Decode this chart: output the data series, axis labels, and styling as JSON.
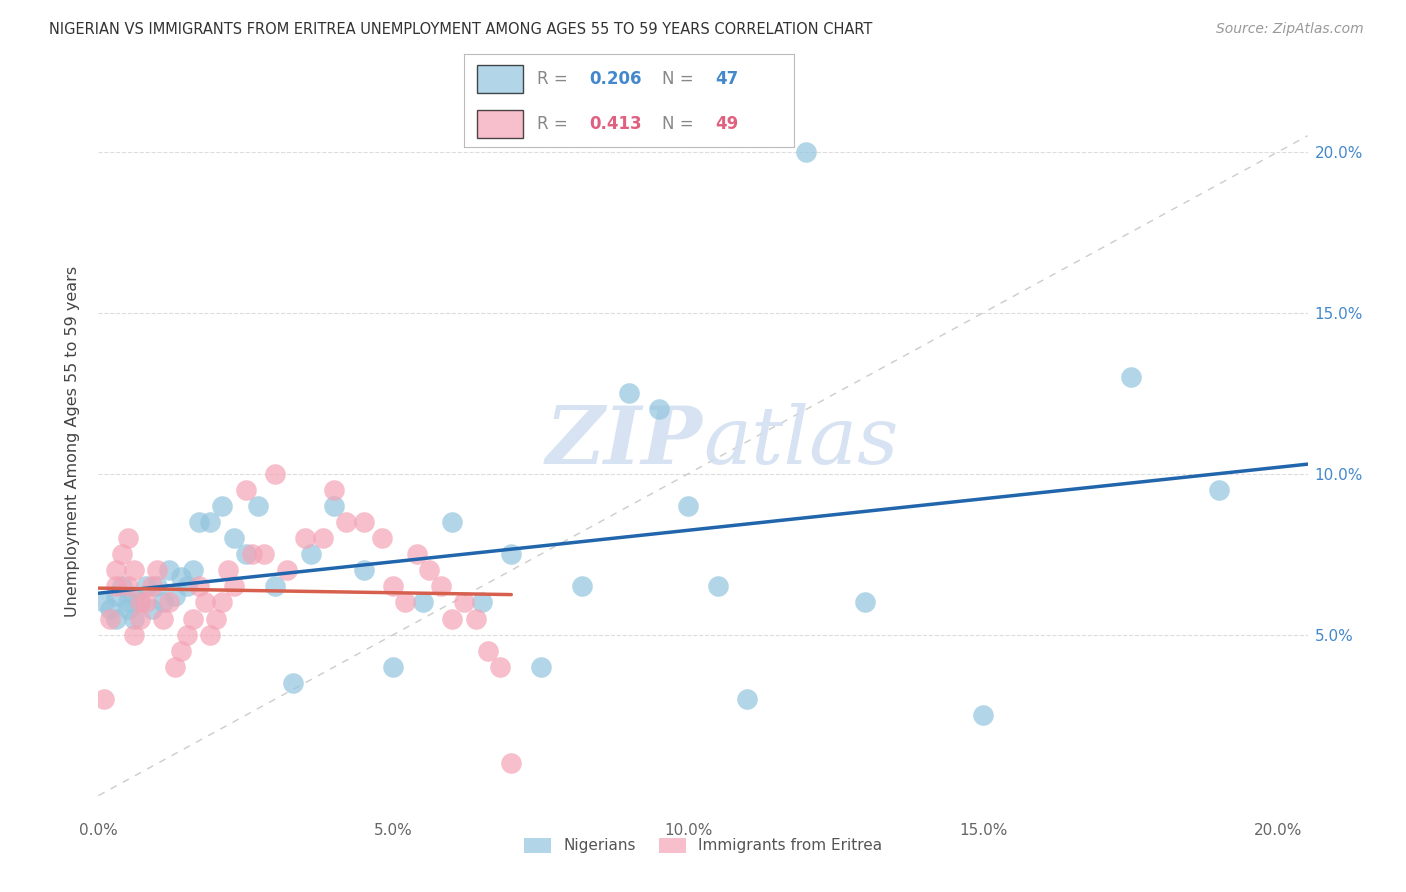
{
  "title": "NIGERIAN VS IMMIGRANTS FROM ERITREA UNEMPLOYMENT AMONG AGES 55 TO 59 YEARS CORRELATION CHART",
  "source": "Source: ZipAtlas.com",
  "ylabel": "Unemployment Among Ages 55 to 59 years",
  "xlabel_ticks": [
    "0.0%",
    "5.0%",
    "10.0%",
    "15.0%",
    "20.0%"
  ],
  "ylabel_ticks": [
    "5.0%",
    "10.0%",
    "15.0%",
    "20.0%"
  ],
  "xlim": [
    0.0,
    0.205
  ],
  "ylim": [
    -0.005,
    0.225
  ],
  "legend1_label": "Nigerians",
  "legend2_label": "Immigrants from Eritrea",
  "r1": "0.206",
  "n1": "47",
  "r2": "0.413",
  "n2": "49",
  "blue_color": "#92c5de",
  "pink_color": "#f4a3b5",
  "blue_line_color": "#2166ac",
  "pink_line_color": "#d6604d",
  "blue_x": [
    0.001,
    0.002,
    0.003,
    0.003,
    0.004,
    0.005,
    0.005,
    0.006,
    0.006,
    0.007,
    0.008,
    0.009,
    0.01,
    0.011,
    0.012,
    0.013,
    0.014,
    0.015,
    0.016,
    0.017,
    0.019,
    0.021,
    0.023,
    0.025,
    0.027,
    0.03,
    0.033,
    0.036,
    0.04,
    0.045,
    0.05,
    0.055,
    0.06,
    0.065,
    0.07,
    0.075,
    0.082,
    0.09,
    0.095,
    0.1,
    0.105,
    0.11,
    0.12,
    0.13,
    0.15,
    0.175,
    0.19
  ],
  "blue_y": [
    0.06,
    0.058,
    0.062,
    0.055,
    0.065,
    0.06,
    0.058,
    0.062,
    0.055,
    0.06,
    0.065,
    0.058,
    0.065,
    0.06,
    0.07,
    0.062,
    0.068,
    0.065,
    0.07,
    0.085,
    0.085,
    0.09,
    0.08,
    0.075,
    0.09,
    0.065,
    0.035,
    0.075,
    0.09,
    0.07,
    0.04,
    0.06,
    0.085,
    0.06,
    0.075,
    0.04,
    0.065,
    0.125,
    0.12,
    0.09,
    0.065,
    0.03,
    0.2,
    0.06,
    0.025,
    0.13,
    0.095
  ],
  "pink_x": [
    0.001,
    0.002,
    0.003,
    0.003,
    0.004,
    0.005,
    0.005,
    0.006,
    0.006,
    0.007,
    0.007,
    0.008,
    0.009,
    0.01,
    0.011,
    0.012,
    0.013,
    0.014,
    0.015,
    0.016,
    0.017,
    0.018,
    0.019,
    0.02,
    0.021,
    0.022,
    0.023,
    0.025,
    0.026,
    0.028,
    0.03,
    0.032,
    0.035,
    0.038,
    0.04,
    0.042,
    0.045,
    0.048,
    0.05,
    0.052,
    0.054,
    0.056,
    0.058,
    0.06,
    0.062,
    0.064,
    0.066,
    0.068,
    0.07
  ],
  "pink_y": [
    0.03,
    0.055,
    0.065,
    0.07,
    0.075,
    0.08,
    0.065,
    0.07,
    0.05,
    0.055,
    0.06,
    0.06,
    0.065,
    0.07,
    0.055,
    0.06,
    0.04,
    0.045,
    0.05,
    0.055,
    0.065,
    0.06,
    0.05,
    0.055,
    0.06,
    0.07,
    0.065,
    0.095,
    0.075,
    0.075,
    0.1,
    0.07,
    0.08,
    0.08,
    0.095,
    0.085,
    0.085,
    0.08,
    0.065,
    0.06,
    0.075,
    0.07,
    0.065,
    0.055,
    0.06,
    0.055,
    0.045,
    0.04,
    0.01
  ],
  "ytick_vals": [
    0.05,
    0.1,
    0.15,
    0.2
  ],
  "xtick_vals": [
    0.0,
    0.05,
    0.1,
    0.15,
    0.2
  ],
  "grid_color": "#dddddd",
  "watermark_color": "#d0dff0"
}
